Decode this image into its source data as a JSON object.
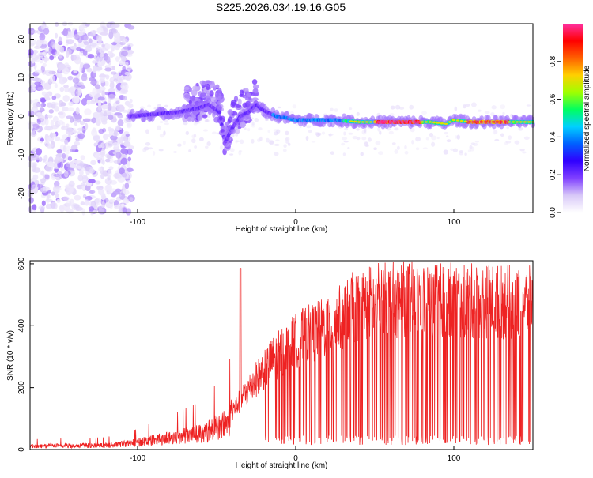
{
  "title": "S225.2026.034.19.16.G05",
  "chart_data": [
    {
      "type": "heatmap",
      "xlabel": "Height of straight line (km)",
      "ylabel": "Frequency (Hz)",
      "xlim": [
        -168,
        150
      ],
      "ylim": [
        -25,
        24
      ],
      "xticks": [
        -100,
        0,
        100
      ],
      "xtick_labels": [
        "-100",
        "0",
        "100"
      ],
      "yticks": [
        -20,
        -10,
        0,
        10,
        20
      ],
      "ytick_labels": [
        "-20",
        "-10",
        "0",
        "10",
        "20"
      ],
      "ridge": {
        "x": [
          -105,
          -90,
          -75,
          -62,
          -55,
          -48,
          -45,
          -40,
          -35,
          -30,
          -25,
          -22,
          -18,
          -12,
          -5,
          0,
          10,
          25,
          40,
          55,
          70,
          85,
          95,
          100,
          110,
          130,
          150
        ],
        "y": [
          0,
          0.5,
          1,
          2,
          3,
          1,
          -7,
          -3,
          0,
          1,
          3,
          2,
          1,
          0,
          -0.5,
          -1,
          -1,
          -1,
          -1.5,
          -1.5,
          -1.5,
          -1.5,
          -2,
          -1,
          -1.5,
          -1.5,
          -1.5
        ]
      },
      "colorbar": {
        "label": "Normalized spectral amplitude",
        "range": [
          0,
          1
        ],
        "ticks": [
          0.0,
          0.2,
          0.4,
          0.6,
          0.8
        ],
        "tick_labels": [
          "0.0",
          "0.2",
          "0.4",
          "0.6",
          "0.8"
        ],
        "colors": [
          "#ffffff",
          "#d8c8f8",
          "#8040ff",
          "#3000ff",
          "#0060ff",
          "#00d0ff",
          "#00ff60",
          "#a0ff00",
          "#ffd000",
          "#ff6000",
          "#ff0000",
          "#ff30a0"
        ]
      }
    },
    {
      "type": "line",
      "xlabel": "Height of straight line (km)",
      "ylabel": "SNR (10 * v/v)",
      "xlim": [
        -168,
        150
      ],
      "ylim": [
        0,
        610
      ],
      "xticks": [
        -100,
        0,
        100
      ],
      "xtick_labels": [
        "-100",
        "0",
        "100"
      ],
      "yticks": [
        0,
        200,
        400,
        600
      ],
      "ytick_labels": [
        "0",
        "200",
        "400",
        "600"
      ],
      "color": "#ee2222",
      "envelope": {
        "x": [
          -168,
          -120,
          -100,
          -80,
          -60,
          -45,
          -35,
          -25,
          -15,
          -5,
          5,
          15,
          25,
          35,
          50,
          70,
          100,
          130,
          150
        ],
        "y": [
          15,
          18,
          30,
          50,
          70,
          110,
          180,
          260,
          330,
          380,
          420,
          440,
          470,
          520,
          550,
          555,
          550,
          545,
          540
        ]
      }
    }
  ]
}
